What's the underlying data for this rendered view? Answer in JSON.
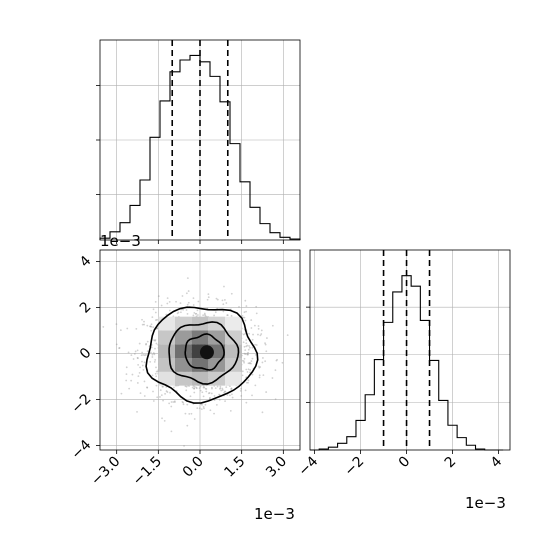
{
  "chart_data": [
    {
      "panel": "top-left",
      "type": "histogram",
      "xlim": [
        -3.6,
        3.6
      ],
      "x_scale_label": "",
      "grid": true,
      "bins": {
        "edges": [
          -3.6,
          -3.24,
          -2.88,
          -2.52,
          -2.16,
          -1.8,
          -1.44,
          -1.08,
          -0.72,
          -0.36,
          0.0,
          0.36,
          0.72,
          1.08,
          1.44,
          1.8,
          2.16,
          2.52,
          2.88,
          3.24,
          3.6
        ],
        "counts": [
          2,
          9,
          19,
          38,
          66,
          113,
          153,
          185,
          198,
          203,
          196,
          180,
          152,
          106,
          64,
          36,
          18,
          8,
          3,
          1
        ]
      },
      "ylim": [
        0,
        220
      ],
      "quantiles": [
        -1.0,
        0.0,
        1.0
      ]
    },
    {
      "panel": "bottom-left",
      "type": "scatter",
      "xlim": [
        -3.6,
        3.6
      ],
      "ylim": [
        -4.2,
        4.5
      ],
      "x_ticks": [
        "−3.0",
        "−1.5",
        "0.0",
        "1.5",
        "3.0"
      ],
      "x_tick_values": [
        -3.0,
        -1.5,
        0.0,
        1.5,
        3.0
      ],
      "y_ticks": [
        "−4",
        "−2",
        "0",
        "2",
        "4"
      ],
      "y_tick_values": [
        -4,
        -2,
        0,
        2,
        4
      ],
      "x_scale_label": "1e−3",
      "y_scale_label": "1e−3",
      "grid": true,
      "point_color": "#9a9a9a",
      "n_points": 1500,
      "sigma_x": 1.0,
      "sigma_y": 1.0,
      "density_grid": {
        "x_edges": [
          -1.5,
          -0.9,
          -0.3,
          0.3,
          0.9,
          1.5
        ],
        "y_edges": [
          -1.4,
          -0.8,
          -0.2,
          0.4,
          1.0,
          1.6
        ],
        "levels": [
          [
            0.15,
            0.28,
            0.34,
            0.26,
            0.12
          ],
          [
            0.3,
            0.55,
            0.7,
            0.52,
            0.27
          ],
          [
            0.36,
            0.72,
            0.95,
            0.7,
            0.33
          ],
          [
            0.28,
            0.5,
            0.66,
            0.48,
            0.25
          ],
          [
            0.12,
            0.24,
            0.3,
            0.22,
            0.1
          ]
        ]
      },
      "contours": [
        {
          "rx": 1.95,
          "ry": 2.05,
          "cx": 0.05,
          "cy": 0.0
        },
        {
          "rx": 1.25,
          "ry": 1.3,
          "cx": 0.1,
          "cy": 0.05
        },
        {
          "rx": 0.7,
          "ry": 0.75,
          "cx": 0.15,
          "cy": 0.05
        }
      ]
    },
    {
      "panel": "bottom-right",
      "type": "histogram",
      "xlim": [
        -4.2,
        4.5
      ],
      "x_ticks": [
        "−4",
        "−2",
        "0",
        "2",
        "4"
      ],
      "x_tick_values": [
        -4,
        -2,
        0,
        2,
        4
      ],
      "x_scale_label": "1e−3",
      "grid": true,
      "bins": {
        "edges": [
          -4.2,
          -3.8,
          -3.4,
          -3.0,
          -2.6,
          -2.2,
          -1.8,
          -1.4,
          -1.0,
          -0.6,
          -0.2,
          0.2,
          0.6,
          1.0,
          1.4,
          1.8,
          2.2,
          2.6,
          3.0,
          3.4,
          3.8,
          4.2
        ],
        "counts": [
          0,
          1,
          3,
          7,
          14,
          31,
          58,
          95,
          134,
          166,
          183,
          172,
          136,
          94,
          52,
          26,
          13,
          5,
          1,
          0,
          0
        ]
      },
      "ylim": [
        0,
        210
      ],
      "quantiles": [
        -1.0,
        0.0,
        1.0
      ]
    }
  ]
}
